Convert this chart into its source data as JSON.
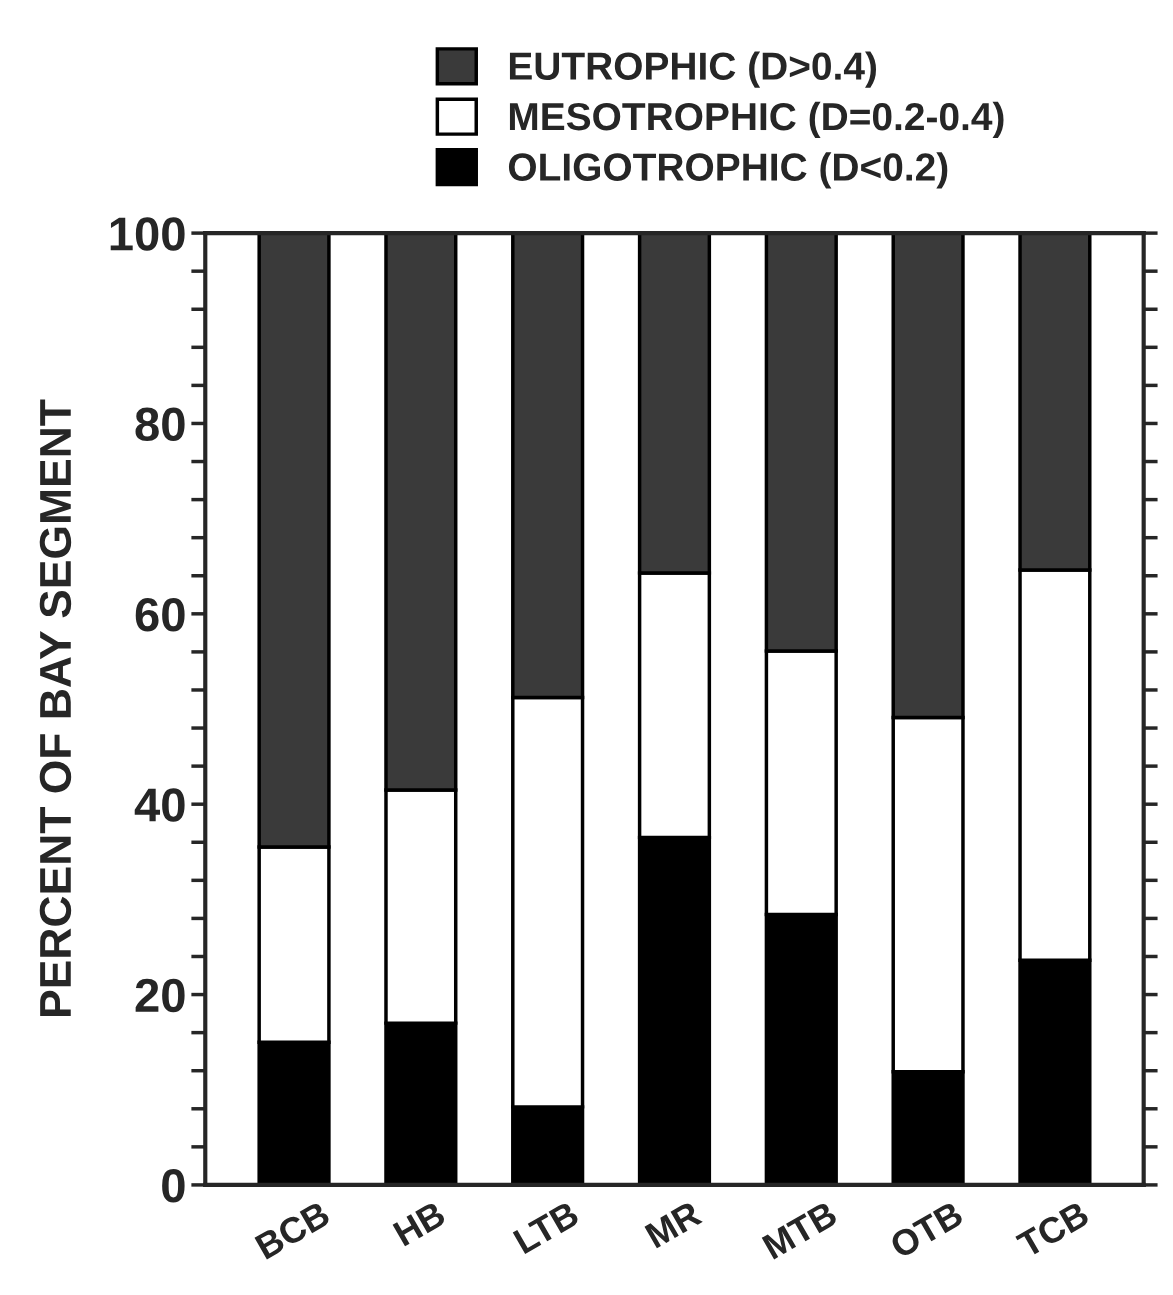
{
  "chart_data": {
    "type": "bar",
    "stacked": true,
    "ylabel": "PERCENT OF BAY SEGMENT",
    "categories": [
      "BCB",
      "HB",
      "LTB",
      "MR",
      "MTB",
      "OTB",
      "TCB"
    ],
    "series": [
      {
        "name": "OLIGOTROPHIC (D<0.2)",
        "color": "#000000",
        "values": [
          15,
          17,
          8.2,
          36.5,
          28.4,
          11.9,
          23.6
        ]
      },
      {
        "name": "MESOTROPHIC (D=0.2-0.4)",
        "color": "#ffffff",
        "values": [
          20.5,
          24.5,
          43,
          27.8,
          27.7,
          37.2,
          41
        ]
      },
      {
        "name": "EUTROPHIC (D>0.4)",
        "color": "#3a3a3a",
        "values": [
          64.5,
          58.5,
          48.8,
          35.7,
          43.9,
          50.9,
          35.4
        ]
      }
    ],
    "ylim": [
      0,
      100
    ],
    "yticks": [
      0,
      {
        "value": 4,
        "label": null
      },
      {
        "value": 8,
        "label": null
      },
      {
        "value": 12,
        "label": null
      },
      {
        "value": 16,
        "label": null
      },
      20,
      {
        "value": 24,
        "label": null
      },
      {
        "value": 28,
        "label": null
      },
      {
        "value": 32,
        "label": null
      },
      {
        "value": 36,
        "label": null
      },
      40,
      {
        "value": 44,
        "label": null
      },
      {
        "value": 48,
        "label": null
      },
      {
        "value": 52,
        "label": null
      },
      {
        "value": 56,
        "label": null
      },
      60,
      {
        "value": 64,
        "label": null
      },
      {
        "value": 68,
        "label": null
      },
      {
        "value": 72,
        "label": null
      },
      {
        "value": 76,
        "label": null
      },
      80,
      {
        "value": 84,
        "label": null
      },
      {
        "value": 88,
        "label": null
      },
      {
        "value": 92,
        "label": null
      },
      {
        "value": 96,
        "label": null
      },
      100
    ],
    "grid": false,
    "legend": "top"
  }
}
